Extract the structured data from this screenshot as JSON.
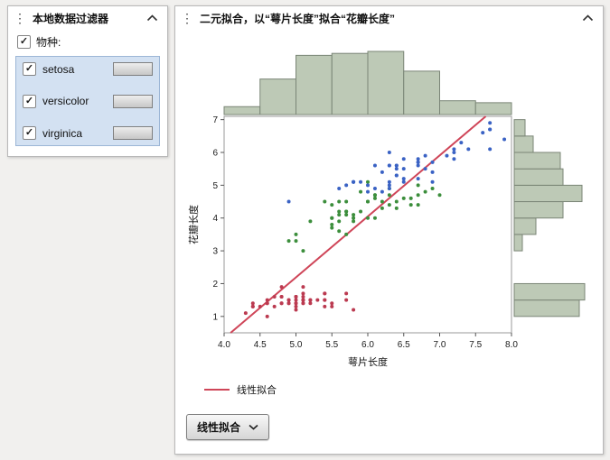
{
  "icons": {
    "menu_dots": "⋮"
  },
  "filter_panel": {
    "title": "本地数据过滤器",
    "field_label": "物种:",
    "items": [
      {
        "label": "setosa",
        "checked": true
      },
      {
        "label": "versicolor",
        "checked": true
      },
      {
        "label": "virginica",
        "checked": true
      }
    ]
  },
  "report_panel": {
    "title": "二元拟合，以“萼片长度”拟合“花瓣长度”",
    "dropdown_button": "线性拟合"
  },
  "chart_data": {
    "type": "scatter",
    "title": "二元拟合，以“萼片长度”拟合“花瓣长度”",
    "xlabel": "萼片长度",
    "ylabel": "花瓣长度",
    "xlim": [
      4.0,
      8.0
    ],
    "ylim": [
      0.5,
      7.1
    ],
    "x_ticks": [
      "4.0",
      "4.5",
      "5.0",
      "5.5",
      "6.0",
      "6.5",
      "7.0",
      "7.5",
      "8.0"
    ],
    "y_ticks": [
      1,
      2,
      3,
      4,
      5,
      6,
      7
    ],
    "grid": false,
    "marginal_histograms": {
      "fill": "#bdc9b6",
      "stroke": "#7a8576",
      "bin_width": 0.5,
      "x_bin_start": 4.0,
      "y_bin_start": 1.0
    },
    "fit_line": {
      "label": "线性拟合",
      "color": "#cf4558",
      "slope": 1.8584,
      "intercept": -7.1014
    },
    "series": [
      {
        "name": "setosa",
        "color": "#bb3a50",
        "points": [
          [
            5.1,
            1.4
          ],
          [
            4.9,
            1.4
          ],
          [
            4.7,
            1.3
          ],
          [
            4.6,
            1.5
          ],
          [
            5.0,
            1.4
          ],
          [
            5.4,
            1.7
          ],
          [
            4.6,
            1.4
          ],
          [
            5.0,
            1.5
          ],
          [
            4.4,
            1.4
          ],
          [
            4.9,
            1.5
          ],
          [
            5.4,
            1.5
          ],
          [
            4.8,
            1.6
          ],
          [
            4.8,
            1.4
          ],
          [
            4.3,
            1.1
          ],
          [
            5.8,
            1.2
          ],
          [
            5.7,
            1.5
          ],
          [
            5.4,
            1.3
          ],
          [
            5.1,
            1.4
          ],
          [
            5.7,
            1.7
          ],
          [
            5.1,
            1.5
          ],
          [
            5.4,
            1.7
          ],
          [
            5.1,
            1.5
          ],
          [
            4.6,
            1.0
          ],
          [
            5.1,
            1.7
          ],
          [
            4.8,
            1.9
          ],
          [
            5.0,
            1.6
          ],
          [
            5.0,
            1.6
          ],
          [
            5.2,
            1.5
          ],
          [
            5.2,
            1.4
          ],
          [
            4.7,
            1.6
          ],
          [
            4.8,
            1.6
          ],
          [
            5.4,
            1.5
          ],
          [
            5.2,
            1.5
          ],
          [
            5.5,
            1.4
          ],
          [
            4.9,
            1.5
          ],
          [
            5.0,
            1.2
          ],
          [
            5.5,
            1.3
          ],
          [
            4.9,
            1.4
          ],
          [
            4.4,
            1.3
          ],
          [
            5.1,
            1.5
          ],
          [
            5.0,
            1.3
          ],
          [
            4.5,
            1.3
          ],
          [
            4.4,
            1.3
          ],
          [
            5.0,
            1.6
          ],
          [
            5.1,
            1.9
          ],
          [
            4.8,
            1.4
          ],
          [
            5.1,
            1.6
          ],
          [
            4.6,
            1.4
          ],
          [
            5.3,
            1.5
          ],
          [
            5.0,
            1.4
          ]
        ]
      },
      {
        "name": "versicolor",
        "color": "#3c8e3c",
        "points": [
          [
            7.0,
            4.7
          ],
          [
            6.4,
            4.5
          ],
          [
            6.9,
            4.9
          ],
          [
            5.5,
            4.0
          ],
          [
            6.5,
            4.6
          ],
          [
            5.7,
            4.5
          ],
          [
            6.3,
            4.7
          ],
          [
            4.9,
            3.3
          ],
          [
            6.6,
            4.6
          ],
          [
            5.2,
            3.9
          ],
          [
            5.0,
            3.5
          ],
          [
            5.9,
            4.2
          ],
          [
            6.0,
            4.0
          ],
          [
            6.1,
            4.7
          ],
          [
            5.6,
            3.6
          ],
          [
            6.7,
            4.4
          ],
          [
            5.6,
            4.5
          ],
          [
            5.8,
            4.1
          ],
          [
            6.2,
            4.5
          ],
          [
            5.6,
            3.9
          ],
          [
            5.9,
            4.8
          ],
          [
            6.1,
            4.0
          ],
          [
            6.3,
            4.9
          ],
          [
            6.1,
            4.7
          ],
          [
            6.4,
            4.3
          ],
          [
            6.6,
            4.4
          ],
          [
            6.8,
            4.8
          ],
          [
            6.7,
            5.0
          ],
          [
            6.0,
            4.5
          ],
          [
            5.7,
            3.5
          ],
          [
            5.5,
            3.8
          ],
          [
            5.5,
            3.7
          ],
          [
            5.8,
            3.9
          ],
          [
            6.0,
            5.1
          ],
          [
            5.4,
            4.5
          ],
          [
            6.0,
            4.5
          ],
          [
            6.7,
            4.7
          ],
          [
            6.3,
            4.4
          ],
          [
            5.6,
            4.1
          ],
          [
            5.5,
            4.0
          ],
          [
            5.5,
            4.4
          ],
          [
            6.1,
            4.6
          ],
          [
            5.8,
            4.0
          ],
          [
            5.0,
            3.3
          ],
          [
            5.6,
            4.2
          ],
          [
            5.7,
            4.2
          ],
          [
            5.7,
            4.2
          ],
          [
            6.2,
            4.3
          ],
          [
            5.1,
            3.0
          ],
          [
            5.7,
            4.1
          ]
        ]
      },
      {
        "name": "virginica",
        "color": "#3a62c4",
        "points": [
          [
            6.3,
            6.0
          ],
          [
            5.8,
            5.1
          ],
          [
            7.1,
            5.9
          ],
          [
            6.3,
            5.6
          ],
          [
            6.5,
            5.8
          ],
          [
            7.6,
            6.6
          ],
          [
            4.9,
            4.5
          ],
          [
            7.3,
            6.3
          ],
          [
            6.7,
            5.8
          ],
          [
            7.2,
            6.1
          ],
          [
            6.5,
            5.1
          ],
          [
            6.4,
            5.3
          ],
          [
            6.8,
            5.5
          ],
          [
            5.7,
            5.0
          ],
          [
            5.8,
            5.1
          ],
          [
            6.4,
            5.3
          ],
          [
            6.5,
            5.5
          ],
          [
            7.7,
            6.7
          ],
          [
            7.7,
            6.9
          ],
          [
            6.0,
            5.0
          ],
          [
            6.9,
            5.7
          ],
          [
            5.6,
            4.9
          ],
          [
            7.7,
            6.7
          ],
          [
            6.3,
            4.9
          ],
          [
            6.7,
            5.7
          ],
          [
            7.2,
            6.0
          ],
          [
            6.2,
            4.8
          ],
          [
            6.1,
            4.9
          ],
          [
            6.4,
            5.6
          ],
          [
            7.2,
            5.8
          ],
          [
            7.4,
            6.1
          ],
          [
            7.9,
            6.4
          ],
          [
            6.4,
            5.6
          ],
          [
            6.3,
            5.1
          ],
          [
            6.1,
            5.6
          ],
          [
            7.7,
            6.1
          ],
          [
            6.3,
            5.6
          ],
          [
            6.4,
            5.5
          ],
          [
            6.0,
            4.8
          ],
          [
            6.9,
            5.4
          ],
          [
            6.7,
            5.6
          ],
          [
            6.9,
            5.1
          ],
          [
            5.8,
            5.1
          ],
          [
            6.8,
            5.9
          ],
          [
            6.7,
            5.7
          ],
          [
            6.7,
            5.2
          ],
          [
            6.3,
            5.0
          ],
          [
            6.5,
            5.2
          ],
          [
            6.2,
            5.4
          ],
          [
            5.9,
            5.1
          ]
        ]
      }
    ]
  }
}
